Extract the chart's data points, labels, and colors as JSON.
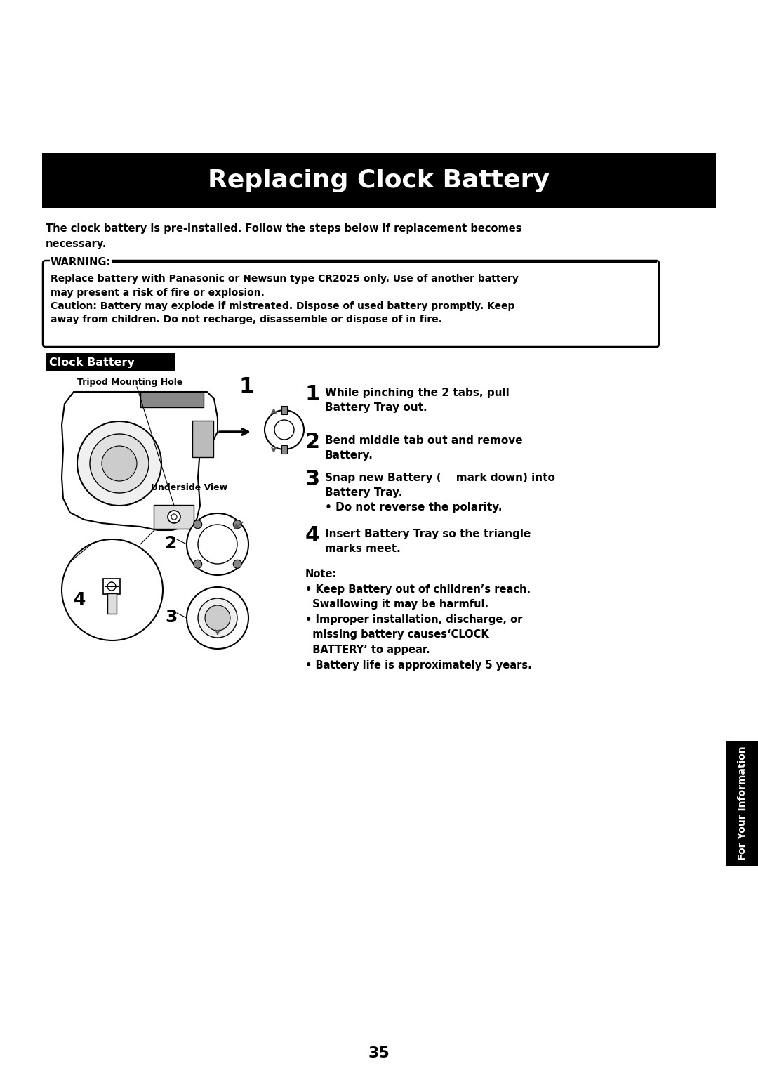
{
  "title": "Replacing Clock Battery",
  "title_bg": "#000000",
  "title_color": "#ffffff",
  "title_fontsize": 26,
  "bg_color": "#ffffff",
  "intro_text": "The clock battery is pre-installed. Follow the steps below if replacement becomes\nnecessary.",
  "warning_label": "WARNING:",
  "warning_text": "Replace battery with Panasonic or Newsun type CR2025 only. Use of another battery\nmay present a risk of fire or explosion.\nCaution: Battery may explode if mistreated. Dispose of used battery promptly. Keep\naway from children. Do not recharge, disassemble or dispose of in fire.",
  "section_label": "Clock Battery",
  "section_bg": "#000000",
  "section_color": "#ffffff",
  "label_tripod": "Tripod Mounting Hole",
  "label_underside": "Underside View",
  "step1_num": "1",
  "step1_text": "While pinching the 2 tabs, pull\nBattery Tray out.",
  "step2_num": "2",
  "step2_text": "Bend middle tab out and remove\nBattery.",
  "step3_num": "3",
  "step3_text": "Snap new Battery (    mark down) into\nBattery Tray.\n• Do not reverse the polarity.",
  "step4_num": "4",
  "step4_text": "Insert Battery Tray so the triangle\nmarks meet.",
  "note_text": "Note:\n• Keep Battery out of children’s reach.\n  Swallowing it may be harmful.\n• Improper installation, discharge, or\n  missing battery causes‘CLOCK\n  BATTERY’ to appear.\n• Battery life is approximately 5 years.",
  "sidebar_text": "For Your Information",
  "page_number": "35",
  "label_2": "2",
  "label_3": "3",
  "label_4": "4"
}
